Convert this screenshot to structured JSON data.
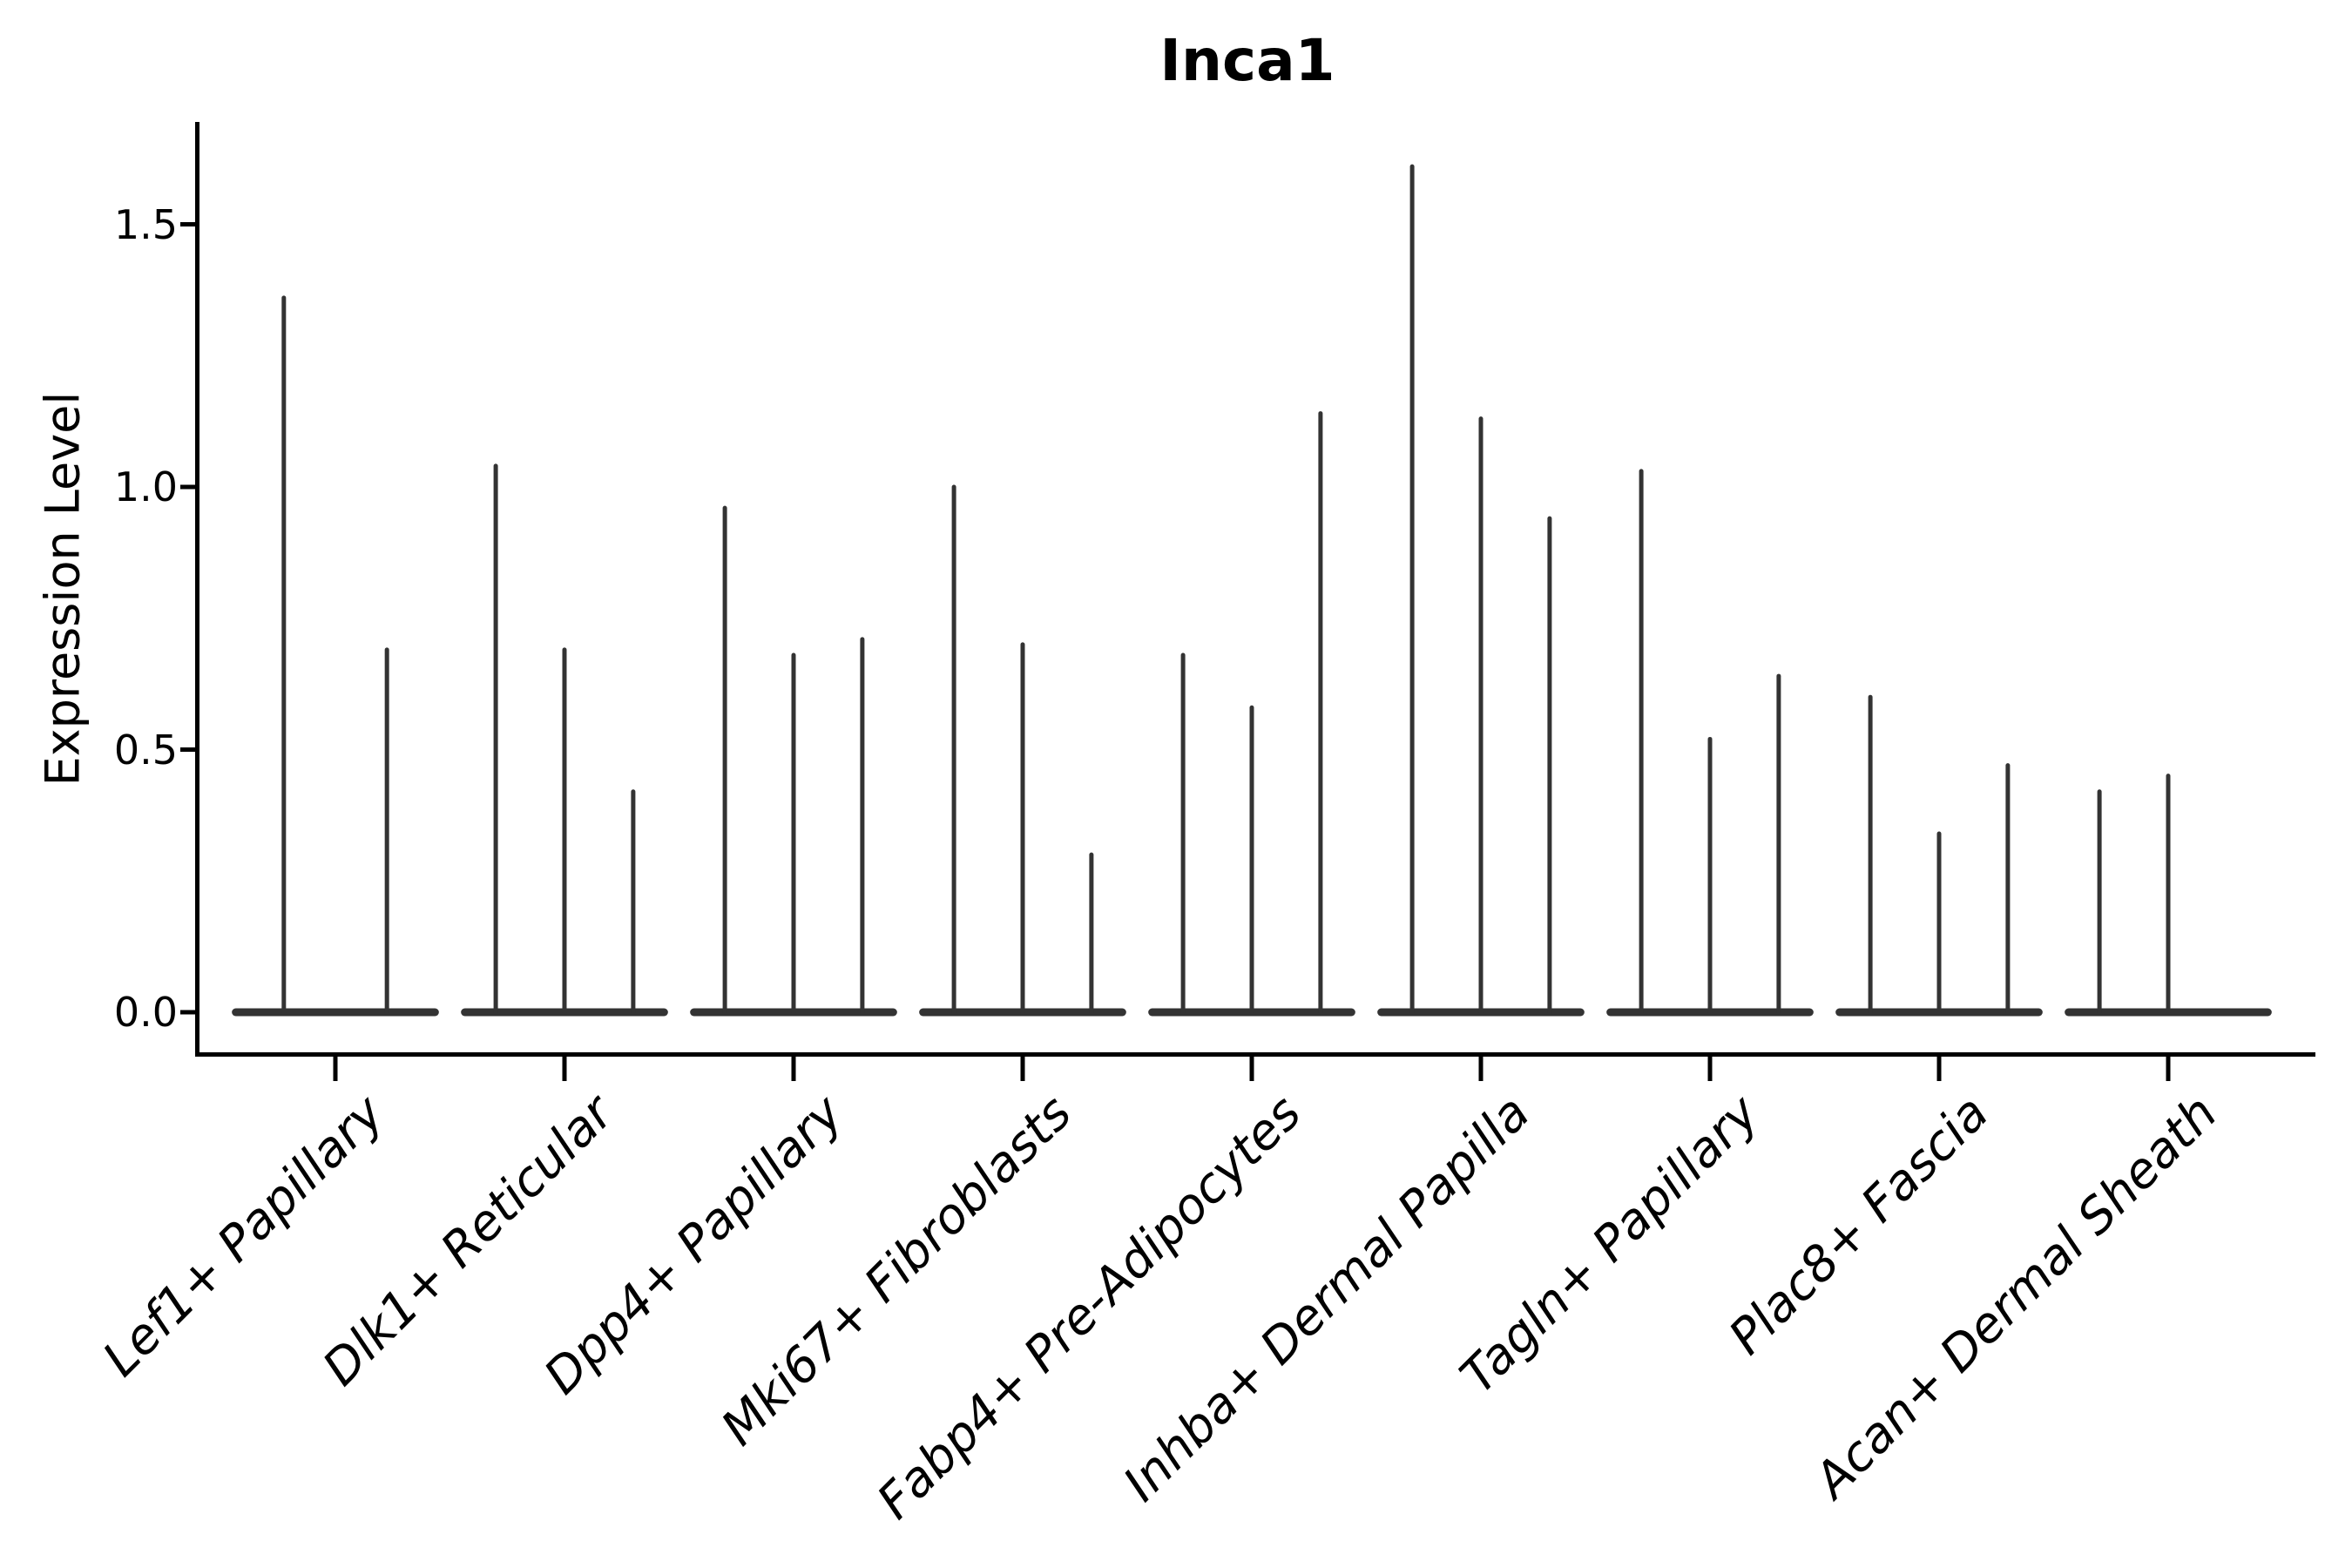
{
  "chart_data": {
    "type": "violin",
    "title": "Inca1",
    "ylabel": "Expression Level",
    "xlabel": "",
    "grid": false,
    "legend": "none",
    "ylim": [
      0,
      1.69
    ],
    "ytick_values": [
      0.0,
      0.5,
      1.0,
      1.5
    ],
    "ytick_labels": [
      "0.0",
      "0.5",
      "1.0",
      "1.5"
    ],
    "categories": [
      "Lef1+ Papillary",
      "Dlk1+ Reticular",
      "Dpp4+ Papillary",
      "Mki67+ Fibroblasts",
      "Fabp4+ Pre-Adipocytes",
      "Inhba+ Dermal Papilla",
      "Tagln+ Papillary",
      "Plac8+ Fascia",
      "Acan+ Dermal Sheath"
    ],
    "violin_peaks_per_category": [
      [
        1.36,
        0.69
      ],
      [
        1.04,
        0.69,
        0.42
      ],
      [
        0.96,
        0.68,
        0.71
      ],
      [
        1.0,
        0.7,
        0.3
      ],
      [
        0.68,
        0.58,
        1.14
      ],
      [
        1.61,
        1.13,
        0.94
      ],
      [
        1.03,
        0.52,
        0.64
      ],
      [
        0.6,
        0.34,
        0.47
      ],
      [
        0.42,
        0.45,
        0.0
      ]
    ],
    "colors": {
      "violin": "#333333",
      "axis": "#000000",
      "text": "#000000",
      "background": "#ffffff"
    }
  }
}
